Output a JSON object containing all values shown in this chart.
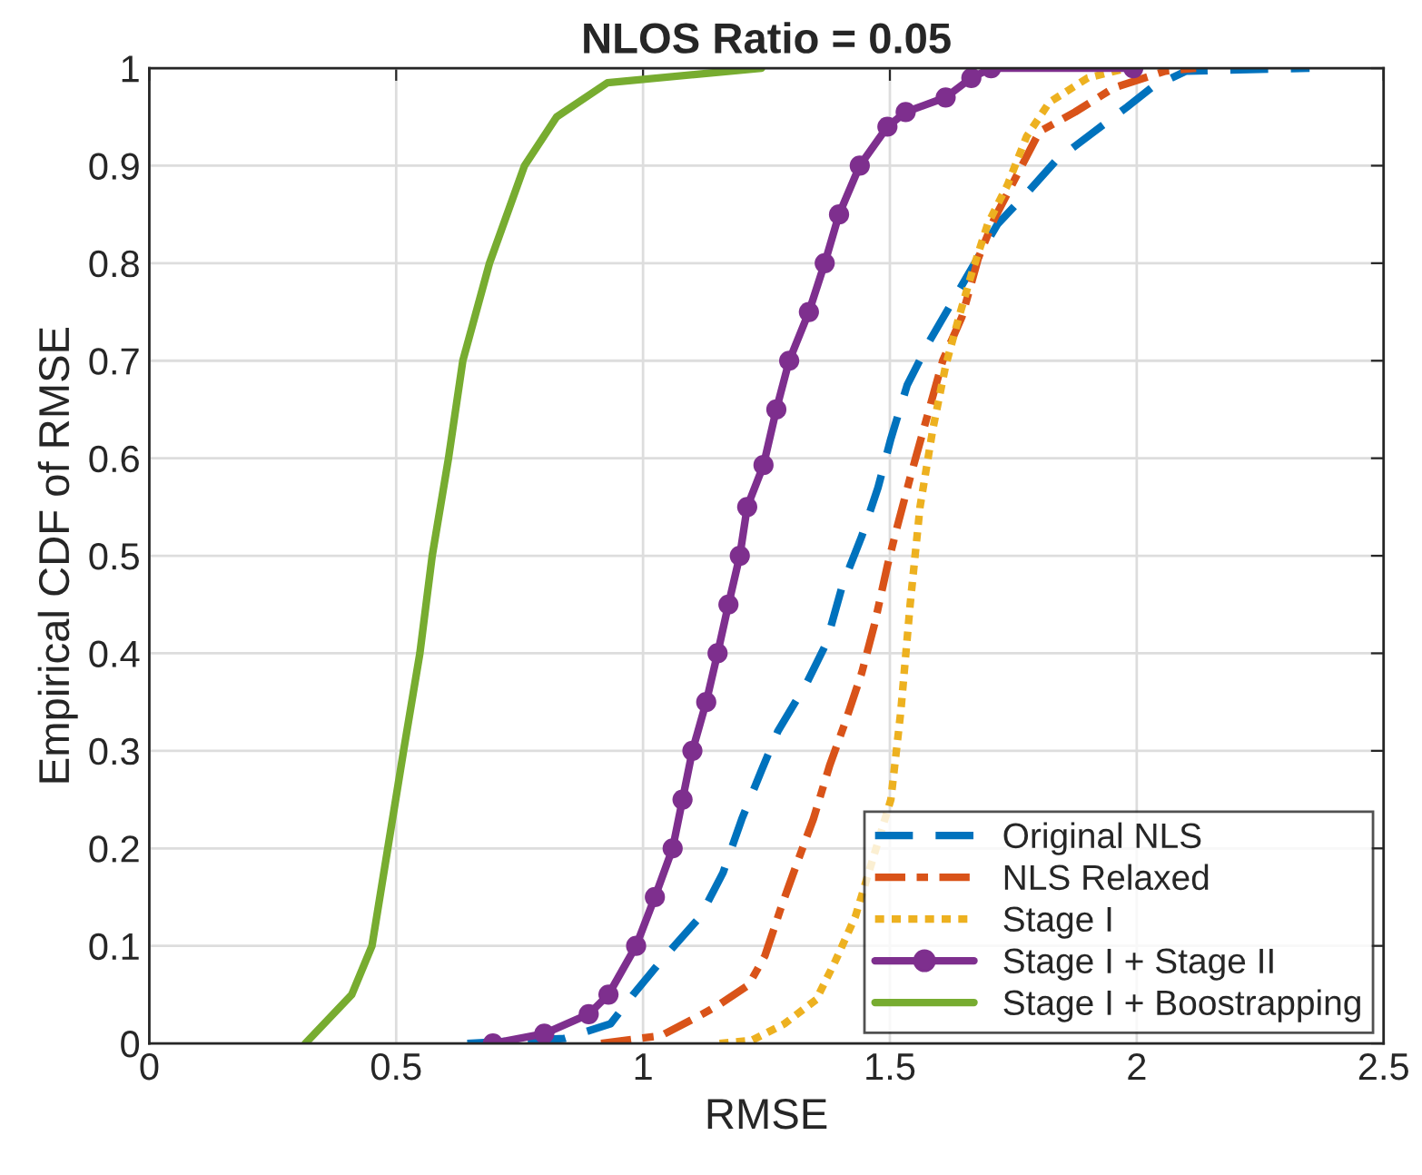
{
  "chart_data": {
    "type": "line",
    "title": "NLOS Ratio = 0.05",
    "xlabel": "RMSE",
    "ylabel": "Empirical CDF of RMSE",
    "xlim": [
      0,
      2.5
    ],
    "xticks": [
      0,
      0.5,
      1,
      1.5,
      2,
      2.5
    ],
    "ylim": [
      0,
      1
    ],
    "yticks": [
      0,
      0.1,
      0.2,
      0.3,
      0.4,
      0.5,
      0.6,
      0.7,
      0.8,
      0.9,
      1
    ],
    "grid": true,
    "legend": "bottom right",
    "series": [
      {
        "name": "Original NLS",
        "color": "#0072bd",
        "line_style": "dashed",
        "marker": "none",
        "x": [
          0.644,
          0.84,
          0.934,
          0.98,
          1.037,
          1.116,
          1.162,
          1.2,
          1.24,
          1.273,
          1.332,
          1.371,
          1.404,
          1.443,
          1.476,
          1.502,
          1.535,
          1.58,
          1.626,
          1.666,
          1.718,
          1.783,
          1.836,
          1.901,
          1.98,
          2.03,
          2.1,
          2.35
        ],
        "values": [
          0,
          0.005,
          0.02,
          0.05,
          0.085,
          0.13,
          0.175,
          0.23,
          0.28,
          0.32,
          0.37,
          0.41,
          0.47,
          0.52,
          0.57,
          0.62,
          0.675,
          0.72,
          0.76,
          0.795,
          0.84,
          0.875,
          0.905,
          0.93,
          0.96,
          0.98,
          0.997,
          1
        ]
      },
      {
        "name": "NLS Relaxed",
        "color": "#d95319",
        "line_style": "dashdot",
        "marker": "none",
        "x": [
          0.915,
          1.037,
          1.12,
          1.155,
          1.214,
          1.247,
          1.28,
          1.312,
          1.345,
          1.378,
          1.41,
          1.443,
          1.469,
          1.495,
          1.515,
          1.541,
          1.574,
          1.607,
          1.646,
          1.679,
          1.711,
          1.757,
          1.803,
          1.875,
          1.954,
          2.058,
          2.12
        ],
        "values": [
          0,
          0.008,
          0.03,
          0.04,
          0.06,
          0.09,
          0.14,
          0.185,
          0.23,
          0.285,
          0.33,
          0.38,
          0.43,
          0.49,
          0.53,
          0.58,
          0.64,
          0.7,
          0.745,
          0.805,
          0.845,
          0.89,
          0.935,
          0.955,
          0.98,
          0.997,
          1
        ]
      },
      {
        "name": "Stage I",
        "color": "#edb120",
        "line_style": "dotted",
        "marker": "none",
        "x": [
          1.155,
          1.22,
          1.286,
          1.351,
          1.39,
          1.43,
          1.502,
          1.522,
          1.541,
          1.561,
          1.587,
          1.613,
          1.64,
          1.666,
          1.698,
          1.738,
          1.777,
          1.823,
          1.901,
          1.98
        ],
        "values": [
          0,
          0.003,
          0.02,
          0.045,
          0.085,
          0.13,
          0.25,
          0.34,
          0.45,
          0.55,
          0.63,
          0.695,
          0.745,
          0.79,
          0.84,
          0.88,
          0.93,
          0.965,
          0.99,
          1
        ]
      },
      {
        "name": "Stage I + Stage II",
        "color": "#7e2f8e",
        "line_style": "solid",
        "marker": "circle",
        "x": [
          0.696,
          0.8,
          0.89,
          0.93,
          0.986,
          1.024,
          1.06,
          1.08,
          1.1,
          1.128,
          1.151,
          1.173,
          1.196,
          1.211,
          1.244,
          1.27,
          1.296,
          1.336,
          1.368,
          1.397,
          1.439,
          1.495,
          1.532,
          1.613,
          1.665,
          1.705,
          1.993
        ],
        "values": [
          0,
          0.01,
          0.03,
          0.05,
          0.1,
          0.15,
          0.2,
          0.25,
          0.3,
          0.35,
          0.4,
          0.45,
          0.5,
          0.55,
          0.593,
          0.65,
          0.7,
          0.75,
          0.8,
          0.85,
          0.9,
          0.94,
          0.955,
          0.97,
          0.99,
          1,
          1
        ]
      },
      {
        "name": "Stage I + Boostrapping",
        "color": "#77ac30",
        "line_style": "solid",
        "marker": "none",
        "x": [
          0.316,
          0.41,
          0.451,
          0.483,
          0.515,
          0.548,
          0.573,
          0.606,
          0.635,
          0.689,
          0.76,
          0.825,
          0.928,
          1.24
        ],
        "values": [
          0,
          0.05,
          0.1,
          0.2,
          0.3,
          0.4,
          0.5,
          0.6,
          0.7,
          0.8,
          0.9,
          0.95,
          0.985,
          1
        ]
      }
    ]
  }
}
